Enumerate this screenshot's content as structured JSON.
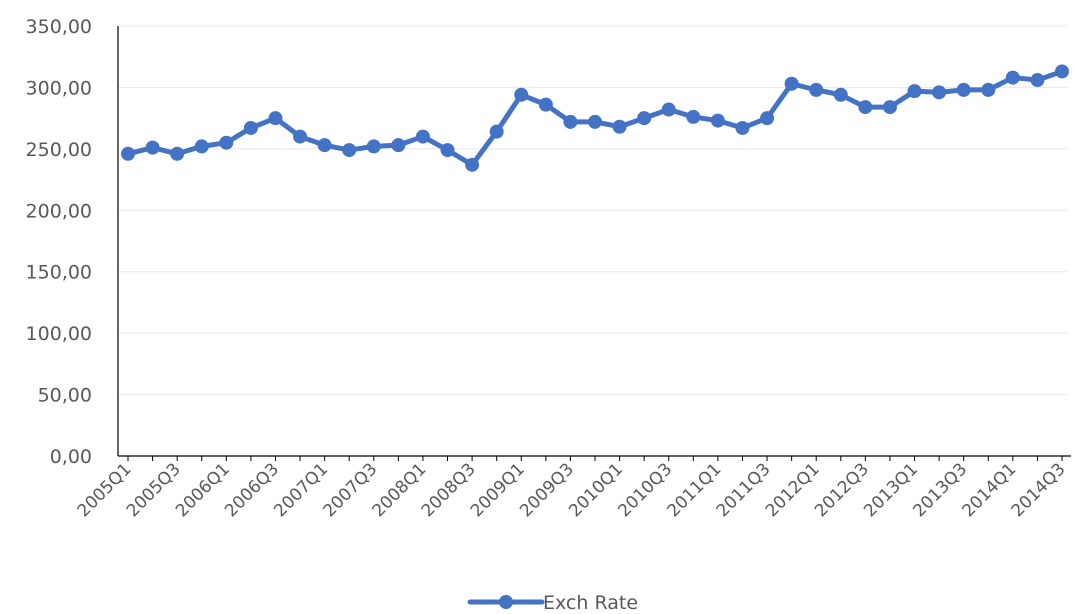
{
  "chart_data": {
    "type": "line",
    "title": "",
    "xlabel": "",
    "ylabel": "",
    "ylim": [
      0,
      350
    ],
    "y_ticks": [
      "0,00",
      "50,00",
      "100,00",
      "150,00",
      "200,00",
      "250,00",
      "300,00",
      "350,00"
    ],
    "grid": true,
    "legend_position": "bottom",
    "color": "#4472C4",
    "x_tick_labels": [
      "2005Q1",
      "2005Q3",
      "2006Q1",
      "2006Q3",
      "2007Q1",
      "2007Q3",
      "2008Q1",
      "2008Q3",
      "2009Q1",
      "2009Q3",
      "2010Q1",
      "2010Q3",
      "2011Q1",
      "2011Q3",
      "2012Q1",
      "2012Q3",
      "2013Q1",
      "2013Q3",
      "2014Q1",
      "2014Q3"
    ],
    "categories": [
      "2005Q1",
      "2005Q2",
      "2005Q3",
      "2005Q4",
      "2006Q1",
      "2006Q2",
      "2006Q3",
      "2006Q4",
      "2007Q1",
      "2007Q2",
      "2007Q3",
      "2007Q4",
      "2008Q1",
      "2008Q2",
      "2008Q3",
      "2008Q4",
      "2009Q1",
      "2009Q2",
      "2009Q3",
      "2009Q4",
      "2010Q1",
      "2010Q2",
      "2010Q3",
      "2010Q4",
      "2011Q1",
      "2011Q2",
      "2011Q3",
      "2011Q4",
      "2012Q1",
      "2012Q2",
      "2012Q3",
      "2012Q4",
      "2013Q1",
      "2013Q2",
      "2013Q3",
      "2013Q4",
      "2014Q1",
      "2014Q2",
      "2014Q3"
    ],
    "series": [
      {
        "name": "Exch Rate",
        "values": [
          246,
          251,
          246,
          252,
          255,
          267,
          275,
          260,
          253,
          249,
          252,
          253,
          260,
          249,
          237,
          264,
          294,
          286,
          272,
          272,
          268,
          275,
          282,
          276,
          273,
          267,
          275,
          303,
          298,
          294,
          284,
          284,
          297,
          296,
          298,
          298,
          308,
          306,
          313
        ]
      }
    ]
  }
}
